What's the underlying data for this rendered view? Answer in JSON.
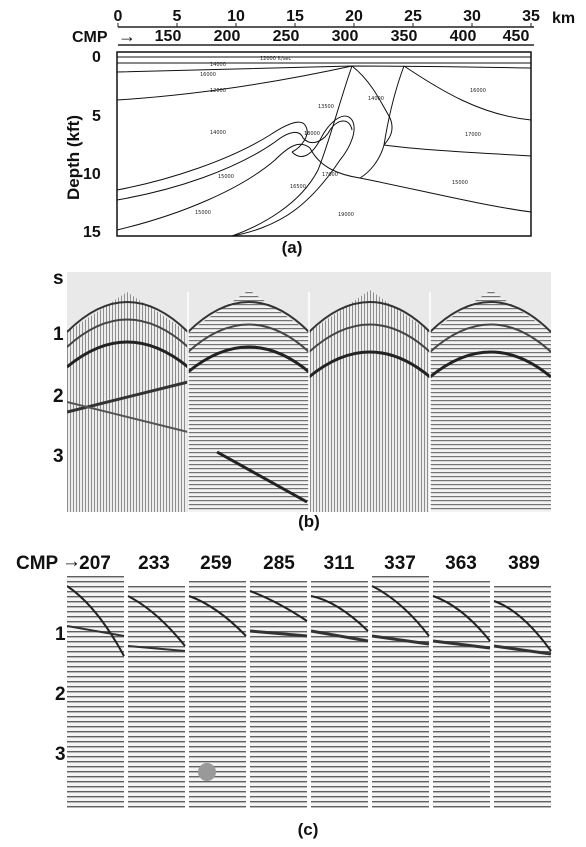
{
  "panel_a": {
    "km_unit": "km",
    "km_ticks": [
      "0",
      "5",
      "10",
      "15",
      "20",
      "25",
      "30",
      "35"
    ],
    "cmp_label": "CMP",
    "cmp_arrow": "→",
    "cmp_ticks": [
      "150",
      "200",
      "250",
      "300",
      "350",
      "400",
      "450"
    ],
    "depth_label": "Depth (kft)",
    "depth_ticks": [
      "0",
      "5",
      "10",
      "15"
    ],
    "velocity_labels": [
      "12000 ft/sec",
      "14000",
      "16000",
      "12000",
      "13500",
      "14000",
      "16000",
      "14000",
      "17000",
      "15000",
      "16500",
      "17000",
      "15000",
      "19000",
      "15000",
      "18000"
    ],
    "caption": "(a)"
  },
  "panel_b": {
    "time_labels": [
      "s",
      "1",
      "2",
      "3"
    ],
    "caption": "(b)"
  },
  "panel_c": {
    "cmp_label": "CMP",
    "cmp_arrow": "→",
    "cmp_values": [
      "207",
      "233",
      "259",
      "285",
      "311",
      "337",
      "363",
      "389"
    ],
    "time_labels": [
      "1",
      "2",
      "3"
    ],
    "caption": "(c)"
  }
}
